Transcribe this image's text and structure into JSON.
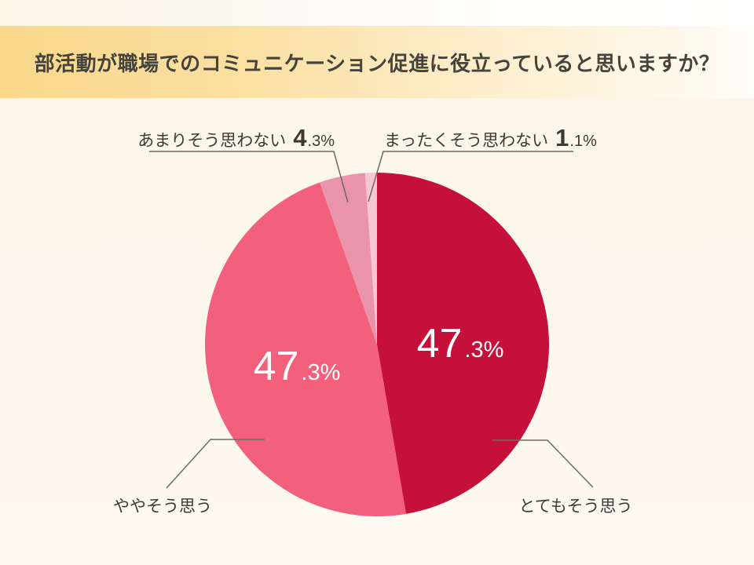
{
  "chart_data": {
    "type": "pie",
    "title": "部活動が職場でのコミュニケーション促進に役立っていると思いますか？",
    "unit": "%",
    "direction": "clockwise",
    "start_angle_deg": 0,
    "legend_position": "none",
    "slices": [
      {
        "id": "strongly-agree",
        "label": "とてもそう思う",
        "value": 47.3,
        "display": "47.3%",
        "color": "#c5113a",
        "percent_label_position": "inside"
      },
      {
        "id": "somewhat-agree",
        "label": "ややそう思う",
        "value": 47.3,
        "display": "47.3%",
        "color": "#f2607c",
        "percent_label_position": "inside"
      },
      {
        "id": "somewhat-disagree",
        "label": "あまりそう思わない",
        "value": 4.3,
        "display": "4.3%",
        "color": "#e994ab",
        "percent_label_position": "outside-top-left"
      },
      {
        "id": "strongly-disagree",
        "label": "まったくそう思わない",
        "value": 1.1,
        "display": "1.1%",
        "color": "#f6c6d4",
        "percent_label_position": "outside-top-right"
      }
    ]
  },
  "style": {
    "band_gradient_left": "#f9d88b",
    "band_gradient_right": "#fffdf8",
    "background": "#fcf7ec",
    "title_color": "#45443c",
    "label_color": "#3b3a34",
    "leader_line_color": "#6e6a61",
    "percent_color": "#ffffff"
  }
}
